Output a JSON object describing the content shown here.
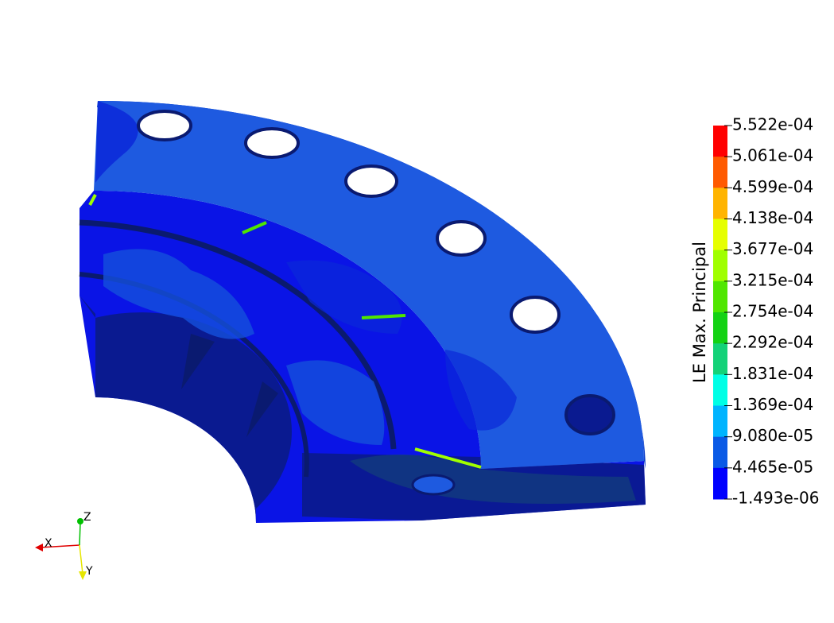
{
  "colorbar": {
    "title": "LE Max. Principal",
    "labels": [
      "5.522e-04",
      "5.061e-04",
      "4.599e-04",
      "4.138e-04",
      "3.677e-04",
      "3.215e-04",
      "2.754e-04",
      "2.292e-04",
      "1.831e-04",
      "1.369e-04",
      "9.080e-05",
      "4.465e-05",
      "-1.493e-06"
    ],
    "colors": [
      "#ff0000",
      "#ff5a00",
      "#ffb400",
      "#e6ff00",
      "#a0ff00",
      "#50e600",
      "#14d214",
      "#14d278",
      "#00ffe6",
      "#00b4ff",
      "#0a5ae6",
      "#0000ff"
    ]
  },
  "axes": {
    "x": "X",
    "y": "Y",
    "z": "Z"
  }
}
